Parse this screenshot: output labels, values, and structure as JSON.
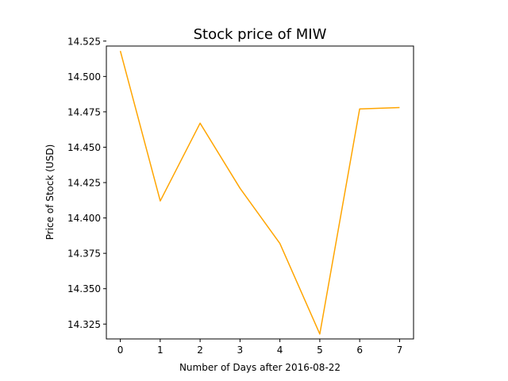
{
  "chart_data": {
    "type": "line",
    "title": "Stock price of MIW",
    "xlabel": "Number of Days after 2016-08-22",
    "ylabel": "Price of Stock (USD)",
    "x": [
      0,
      1,
      2,
      3,
      4,
      5,
      6,
      7
    ],
    "series": [
      {
        "values": [
          14.518,
          14.412,
          14.467,
          14.421,
          14.382,
          14.318,
          14.477,
          14.478
        ],
        "color": "#ffa500"
      }
    ],
    "xlim": [
      -0.35,
      7.35
    ],
    "ylim": [
      14.3145,
      14.5215
    ],
    "xticks": [
      0,
      1,
      2,
      3,
      4,
      5,
      6,
      7
    ],
    "yticks": [
      14.325,
      14.35,
      14.375,
      14.4,
      14.425,
      14.45,
      14.475,
      14.5,
      14.525
    ],
    "xtick_labels": [
      "0",
      "1",
      "2",
      "3",
      "4",
      "5",
      "6",
      "7"
    ],
    "ytick_labels": [
      "14.325",
      "14.350",
      "14.375",
      "14.400",
      "14.425",
      "14.450",
      "14.475",
      "14.500",
      "14.525"
    ],
    "grid": false,
    "legend": "none"
  }
}
